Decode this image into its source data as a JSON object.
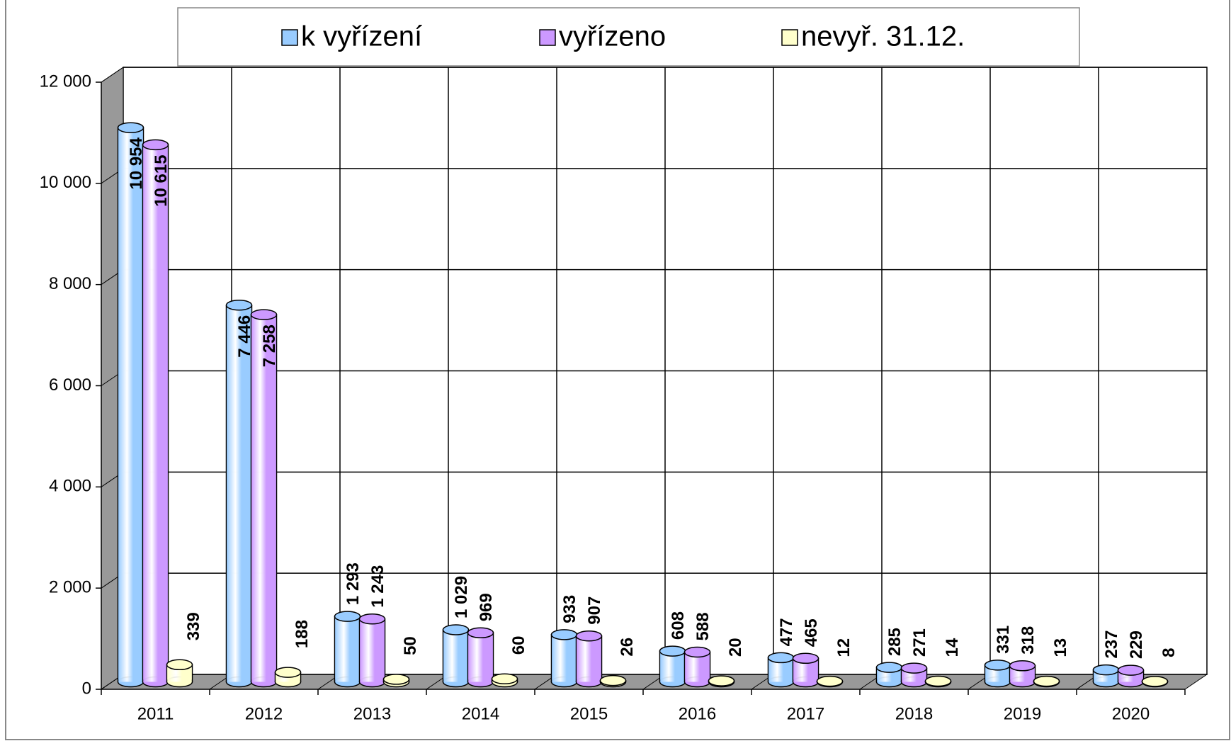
{
  "chart_data": {
    "type": "bar",
    "categories": [
      "2011",
      "2012",
      "2013",
      "2014",
      "2015",
      "2016",
      "2017",
      "2018",
      "2019",
      "2020"
    ],
    "series": [
      {
        "name": "k vyřízení",
        "color": "#99ccff",
        "values": [
          10954,
          7446,
          1293,
          1029,
          933,
          608,
          477,
          285,
          331,
          237
        ],
        "value_labels": [
          "10 954",
          "7 446",
          "1 293",
          "1 029",
          "933",
          "608",
          "477",
          "285",
          "331",
          "237"
        ]
      },
      {
        "name": "vyřízeno",
        "color": "#cc99ff",
        "values": [
          10615,
          7258,
          1243,
          969,
          907,
          588,
          465,
          271,
          318,
          229
        ],
        "value_labels": [
          "10 615",
          "7 258",
          "1 243",
          "969",
          "907",
          "588",
          "465",
          "271",
          "318",
          "229"
        ]
      },
      {
        "name": "nevyř. 31.12.",
        "color": "#ffffcc",
        "values": [
          339,
          188,
          50,
          60,
          26,
          20,
          12,
          14,
          13,
          8
        ]
      }
    ],
    "ylim": [
      0,
      12000
    ],
    "yticks": [
      0,
      {
        "value": 2000,
        "label": "2 000"
      },
      {
        "value": 4000,
        "label": "4 000"
      },
      {
        "value": 6000,
        "label": "6 000"
      },
      {
        "value": 8000,
        "label": "8 000"
      },
      {
        "value": 10000,
        "label": "10 000"
      },
      {
        "value": 12000,
        "label": "12 000"
      }
    ],
    "grid": true,
    "legend": "top"
  }
}
